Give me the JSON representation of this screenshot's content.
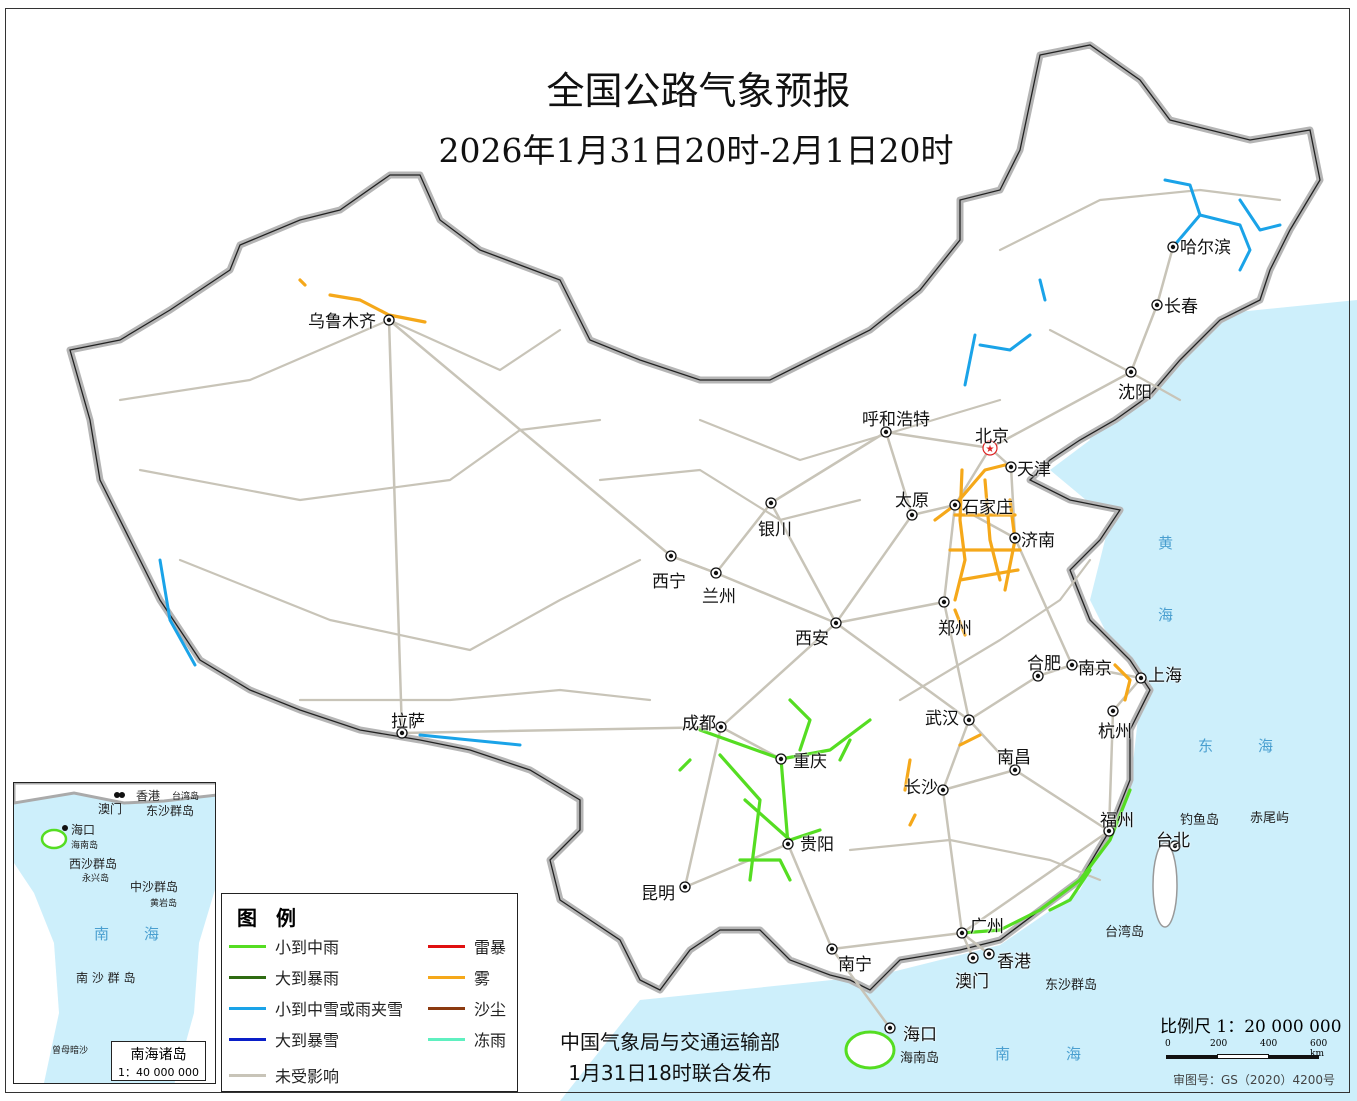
{
  "title": "全国公路气象预报",
  "subtitle": "2026年1月31日20时-2月1日20时",
  "cities": [
    "乌鲁木齐",
    "哈尔滨",
    "长春",
    "沈阳",
    "呼和浩特",
    "北京",
    "天津",
    "太原",
    "石家庄",
    "济南",
    "银川",
    "西宁",
    "兰州",
    "西安",
    "郑州",
    "合肥",
    "南京",
    "上海",
    "杭州",
    "成都",
    "重庆",
    "武汉",
    "南昌",
    "长沙",
    "福州",
    "台北",
    "贵阳",
    "昆明",
    "南宁",
    "广州",
    "香港",
    "澳门",
    "海口",
    "拉萨"
  ],
  "capital": "北京",
  "other_labels": [
    "钓鱼岛",
    "赤尾屿",
    "台湾岛",
    "东沙群岛",
    "海南岛"
  ],
  "sea_labels": [
    "黄",
    "海",
    "东",
    "海",
    "南",
    "海"
  ],
  "legend": {
    "title": "图 例",
    "items": [
      {
        "label": "小到中雨",
        "color": "#55dd22"
      },
      {
        "label": "大到暴雨",
        "color": "#2e6b12"
      },
      {
        "label": "小到中雪或雨夹雪",
        "color": "#1aa3e8"
      },
      {
        "label": "大到暴雪",
        "color": "#0a1fc8"
      },
      {
        "label": "未受影响",
        "color": "#c8c4b8"
      },
      {
        "label": "雷暴",
        "color": "#e01010"
      },
      {
        "label": "雾",
        "color": "#f5a81a"
      },
      {
        "label": "沙尘",
        "color": "#8b3a10"
      },
      {
        "label": "冻雨",
        "color": "#5ff0c0"
      }
    ]
  },
  "publisher": {
    "line1": "中国气象局与交通运输部",
    "line2": "1月31日18时联合发布"
  },
  "inset": {
    "labels": [
      "香港",
      "澳门",
      "台湾岛",
      "东沙群岛",
      "海口",
      "海南岛",
      "西沙群岛",
      "永兴岛",
      "中沙群岛",
      "黄岩岛",
      "南",
      "海",
      "南 沙 群 岛",
      "曾母暗沙"
    ],
    "box_title": "南海诸岛",
    "box_scale": "1：40 000 000"
  },
  "scale": {
    "label": "比例尺 1：20 000 000",
    "ticks": [
      "0",
      "200",
      "400",
      "600 km"
    ]
  },
  "review_number": "审图号：GS（2020）4200号",
  "colors": {
    "sea": "#cdeffb",
    "border": "#b0b0b0",
    "road": "#c8c4b8"
  }
}
